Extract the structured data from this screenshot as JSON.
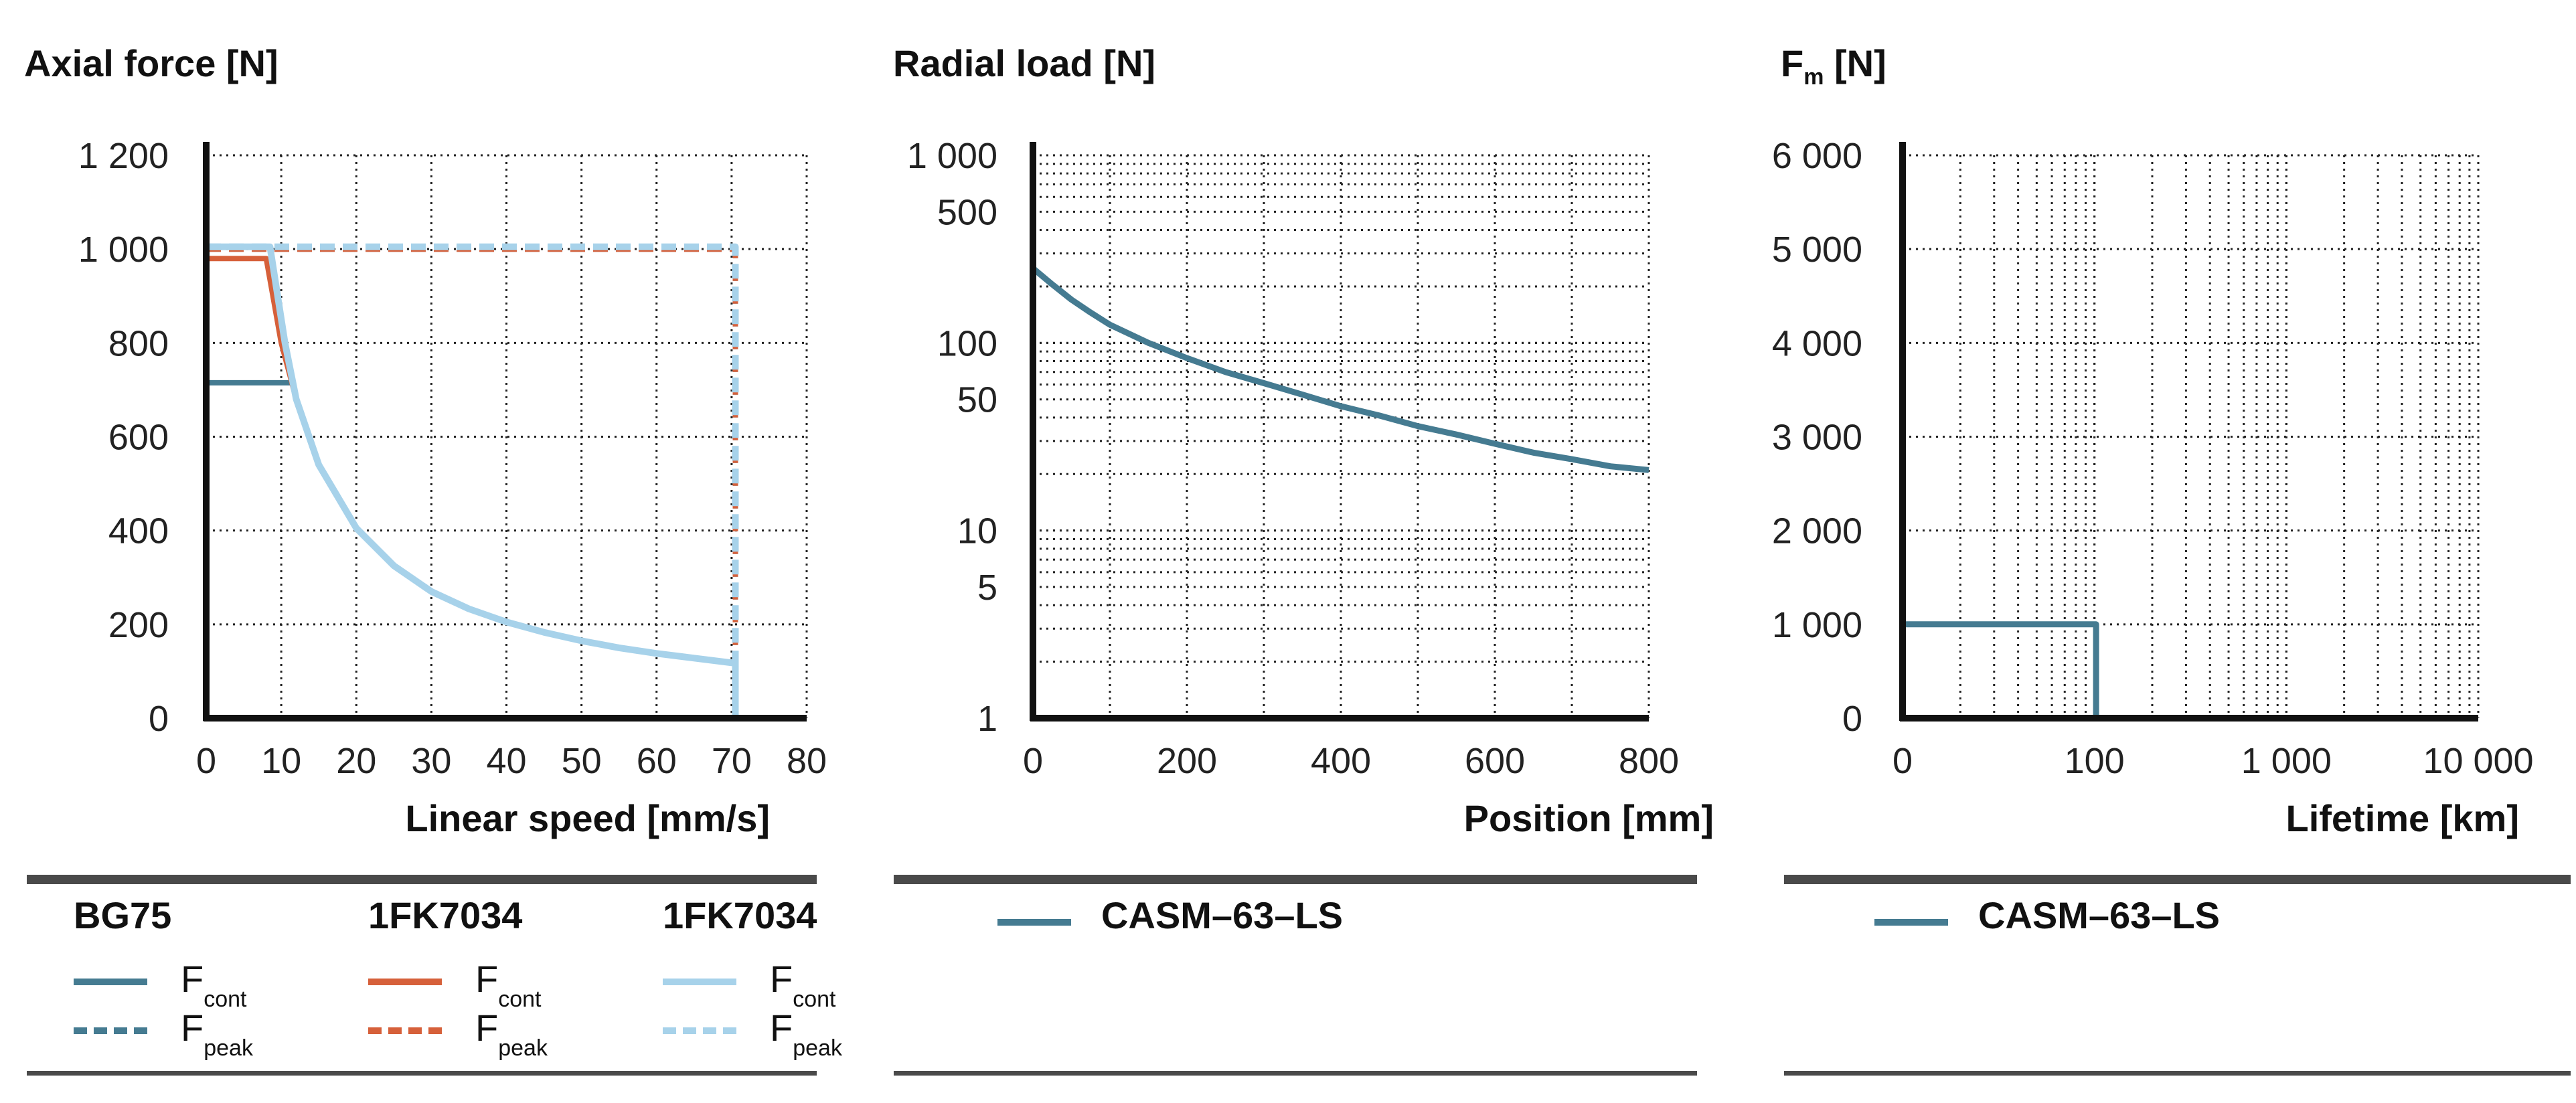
{
  "colors": {
    "bg75": "#457b91",
    "fk7034_orange": "#d6603a",
    "fk7034_light": "#a7d2ea",
    "axis": "#111111",
    "grid": "#222222",
    "rule": "#4a4a4a"
  },
  "chart_data": [
    {
      "type": "line",
      "title": "",
      "ylabel": "Axial force [N]",
      "xlabel": "Linear speed [mm/s]",
      "xlim": [
        0,
        80
      ],
      "ylim": [
        0,
        1200
      ],
      "xticks": [
        0,
        10,
        20,
        30,
        40,
        50,
        60,
        70,
        80
      ],
      "xtick_labels": [
        "0",
        "10",
        "20",
        "30",
        "40",
        "50",
        "60",
        "70",
        "80"
      ],
      "yticks": [
        0,
        200,
        400,
        600,
        800,
        1000,
        1200
      ],
      "ytick_labels": [
        "0",
        "200",
        "400",
        "600",
        "800",
        "1 000",
        "1 200"
      ],
      "grid": true,
      "series": [
        {
          "name": "BG75 Fcont",
          "group": "BG75",
          "style": "solid",
          "color": "#457b91",
          "x": [
            0,
            11.5
          ],
          "y": [
            715,
            715
          ]
        },
        {
          "name": "BG75 Fpeak",
          "group": "BG75",
          "style": "dashed",
          "color": "#457b91",
          "x": [
            0,
            70.5,
            70.5
          ],
          "y": [
            1000,
            1000,
            0
          ]
        },
        {
          "name": "1FK7034 Fcont",
          "group": "1FK7034",
          "style": "solid",
          "color": "#d6603a",
          "x": [
            0,
            8,
            10,
            12,
            15,
            20,
            25,
            30,
            35,
            40,
            45,
            50,
            55,
            60,
            65,
            70,
            70.5,
            70.5
          ],
          "y": [
            980,
            980,
            800,
            680,
            540,
            405,
            325,
            270,
            233,
            205,
            183,
            165,
            150,
            138,
            128,
            118,
            118,
            0
          ]
        },
        {
          "name": "1FK7034 Fpeak",
          "group": "1FK7034",
          "style": "dashed",
          "color": "#d6603a",
          "x": [
            0,
            70.5,
            70.5
          ],
          "y": [
            1000,
            1000,
            0
          ]
        },
        {
          "name": "1FK7034 Fcont",
          "group": "1FK7034 (light)",
          "style": "solid",
          "color": "#a7d2ea",
          "x": [
            0,
            8.5,
            10.5,
            12,
            15,
            20,
            25,
            30,
            35,
            40,
            45,
            50,
            55,
            60,
            65,
            70,
            70.5,
            70.5
          ],
          "y": [
            1005,
            1005,
            800,
            680,
            540,
            405,
            325,
            270,
            233,
            205,
            183,
            165,
            150,
            138,
            128,
            118,
            118,
            0
          ]
        },
        {
          "name": "1FK7034 Fpeak",
          "group": "1FK7034 (light)",
          "style": "dashed",
          "color": "#a7d2ea",
          "x": [
            0,
            70.5,
            70.5
          ],
          "y": [
            1005,
            1005,
            0
          ]
        }
      ]
    },
    {
      "type": "line",
      "title": "",
      "ylabel": "Radial load [N]",
      "xlabel": "Position [mm]",
      "yscale": "log",
      "xlim": [
        0,
        800
      ],
      "ylim": [
        1,
        1000
      ],
      "xticks": [
        0,
        200,
        400,
        600,
        800
      ],
      "xtick_labels": [
        "0",
        "200",
        "400",
        "600",
        "800"
      ],
      "yticks": [
        1,
        5,
        10,
        50,
        100,
        500,
        1000
      ],
      "ytick_labels": [
        "1",
        "5",
        "10",
        "50",
        "100",
        "500",
        "1 000"
      ],
      "grid": true,
      "series": [
        {
          "name": "CASM–63–LS",
          "style": "solid",
          "color": "#457b91",
          "x": [
            0,
            25,
            50,
            75,
            100,
            150,
            200,
            250,
            300,
            350,
            400,
            450,
            500,
            550,
            600,
            650,
            700,
            750,
            800
          ],
          "y": [
            250,
            205,
            170,
            145,
            125,
            100,
            83,
            70,
            61,
            53,
            46,
            41,
            36,
            32.5,
            29,
            26,
            24,
            22,
            21
          ]
        }
      ]
    },
    {
      "type": "line",
      "title": "",
      "ylabel": "F",
      "ylabel_sub": "m",
      "ylabel_unit": "[N]",
      "xlabel": "Lifetime [km]",
      "xscale": "log",
      "xlim_note": "0 label at origin, log decades 100, 1 000, 10 000",
      "xticks": [
        0,
        100,
        1000,
        10000
      ],
      "xtick_labels": [
        "0",
        "100",
        "1 000",
        "10 000"
      ],
      "ylim": [
        0,
        6000
      ],
      "yticks": [
        0,
        1000,
        2000,
        3000,
        4000,
        5000,
        6000
      ],
      "ytick_labels": [
        "0",
        "1 000",
        "2 000",
        "3 000",
        "4 000",
        "5 000",
        "6 000"
      ],
      "grid": true,
      "series": [
        {
          "name": "CASM–63–LS",
          "style": "solid",
          "color": "#457b91",
          "x": [
            10,
            102,
            102
          ],
          "y": [
            1000,
            1000,
            0
          ]
        }
      ]
    }
  ],
  "legend1": {
    "groups": [
      {
        "title": "BG75",
        "color": "#457b91",
        "rows": [
          {
            "style": "solid",
            "main": "F",
            "sub": "cont"
          },
          {
            "style": "dash",
            "main": "F",
            "sub": "peak"
          }
        ]
      },
      {
        "title": "1FK7034",
        "color": "#d6603a",
        "rows": [
          {
            "style": "solid",
            "main": "F",
            "sub": "cont"
          },
          {
            "style": "dash",
            "main": "F",
            "sub": "peak"
          }
        ]
      },
      {
        "title": "1FK7034",
        "color": "#a7d2ea",
        "rows": [
          {
            "style": "solid",
            "main": "F",
            "sub": "cont"
          },
          {
            "style": "dash",
            "main": "F",
            "sub": "peak"
          }
        ]
      }
    ]
  },
  "legend2": {
    "name": "CASM–63–LS",
    "color": "#457b91"
  },
  "legend3": {
    "name": "CASM–63–LS",
    "color": "#457b91"
  }
}
